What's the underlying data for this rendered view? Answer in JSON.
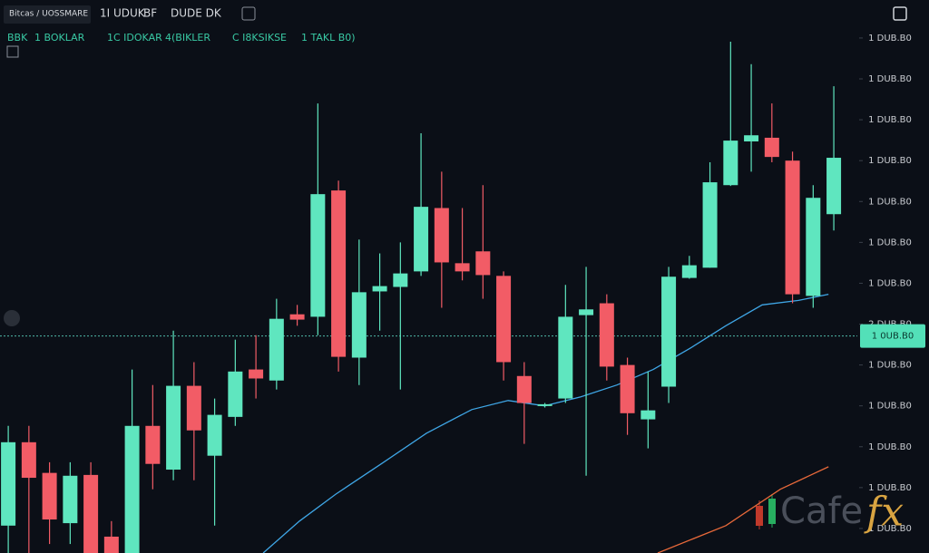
{
  "chart_data": {
    "type": "candlestick",
    "header": [
      "Bitcas / UOSSMARE",
      "1I UDUK",
      "BF",
      "DUDE DK"
    ],
    "legend_line": [
      "BBK",
      "1 BOKLAR",
      "1C IDOKAR",
      "4(BIKLER",
      "C I8KSIKSE",
      "1 TAKL B0)"
    ],
    "open": [
      0.07,
      2.11,
      1.36,
      0.13,
      1.31,
      -0.2,
      -0.6,
      2.51,
      1.44,
      3.49,
      1.78,
      2.73,
      3.89,
      3.62,
      5.24,
      5.18,
      8.27,
      4.18,
      5.8,
      5.91,
      6.29,
      7.84,
      6.49,
      6.78,
      6.18,
      3.73,
      3.0,
      3.18,
      5.22,
      5.51,
      4.0,
      2.67,
      3.47,
      6.13,
      6.38,
      8.4,
      9.47,
      9.56,
      9.0,
      5.69,
      7.69
    ],
    "high": [
      2.51,
      2.51,
      1.62,
      1.62,
      1.62,
      0.18,
      3.89,
      3.51,
      4.84,
      4.07,
      3.18,
      4.62,
      4.73,
      5.62,
      5.47,
      10.4,
      8.51,
      7.07,
      6.73,
      7.0,
      9.67,
      8.73,
      7.84,
      8.4,
      6.29,
      4.07,
      3.07,
      5.96,
      6.4,
      5.73,
      4.18,
      3.84,
      6.4,
      6.67,
      8.96,
      11.91,
      11.36,
      10.4,
      9.22,
      8.4,
      10.82
    ],
    "low": [
      -0.6,
      -0.6,
      -0.38,
      -0.38,
      -0.6,
      -0.6,
      -0.6,
      0.96,
      1.18,
      1.18,
      0.07,
      2.51,
      3.18,
      3.4,
      4.96,
      4.73,
      3.84,
      3.51,
      4.84,
      3.4,
      6.18,
      5.4,
      6.07,
      5.62,
      3.62,
      2.07,
      2.96,
      3.07,
      1.29,
      3.62,
      2.29,
      1.96,
      3.07,
      6.11,
      6.38,
      8.38,
      8.73,
      8.96,
      5.51,
      5.4,
      7.29
    ],
    "close": [
      2.11,
      1.24,
      0.22,
      1.29,
      -0.6,
      -0.6,
      2.51,
      1.58,
      3.49,
      2.4,
      2.78,
      3.84,
      3.67,
      5.13,
      5.11,
      8.18,
      4.2,
      5.78,
      5.93,
      6.24,
      7.87,
      6.51,
      6.29,
      6.2,
      4.07,
      3.07,
      3.04,
      5.18,
      5.36,
      3.96,
      2.82,
      2.89,
      6.16,
      6.44,
      8.47,
      9.49,
      9.62,
      9.09,
      5.73,
      8.09,
      9.07
    ],
    "up_color": "#5fe6bf",
    "down_color": "#f25c66",
    "overlays": [
      {
        "color": "#3fa6e6",
        "x": [
          12.35,
          14.11,
          15.87,
          18.07,
          20.26,
          22.46,
          24.22,
          25.98,
          27.74,
          29.49,
          31.25,
          33.01,
          34.77,
          36.53,
          38.29,
          39.74
        ],
        "values": [
          -0.6,
          0.18,
          0.84,
          1.58,
          2.33,
          2.91,
          3.13,
          3.0,
          3.22,
          3.51,
          3.89,
          4.4,
          4.96,
          5.47,
          5.58,
          5.73
        ]
      },
      {
        "color": "#e8693a",
        "x": [
          31.47,
          34.77,
          37.41,
          39.74
        ],
        "values": [
          -0.6,
          0.07,
          0.96,
          1.51
        ]
      }
    ],
    "last_price": {
      "value": 4.71,
      "label": "1 0UB.B0"
    },
    "xlim": [
      -0.4,
      41.14
    ],
    "ylim": [
      -0.6,
      12.93
    ],
    "yticks": [
      {
        "value": 12,
        "label": "1 DUB.B0"
      },
      {
        "value": 11,
        "label": "1 DUB.B0"
      },
      {
        "value": 10,
        "label": "1 DUB.B0"
      },
      {
        "value": 9,
        "label": "1 DUB.B0"
      },
      {
        "value": 8,
        "label": "1 DUB.B0"
      },
      {
        "value": 7,
        "label": "1 DUB.B0"
      },
      {
        "value": 6,
        "label": "1 DUB.B0"
      },
      {
        "value": 5,
        "label": "2 DUB.B0"
      },
      {
        "value": 4,
        "label": "1 DUB.B0"
      },
      {
        "value": 3,
        "label": "1 DUB.B0"
      },
      {
        "value": 2,
        "label": "1 DUB.B0"
      },
      {
        "value": 1,
        "label": "1 DUB.B0"
      },
      {
        "value": 0,
        "label": "1 DUB.B0"
      }
    ],
    "watermark": {
      "text": "Cafe",
      "accent": "fx"
    }
  }
}
